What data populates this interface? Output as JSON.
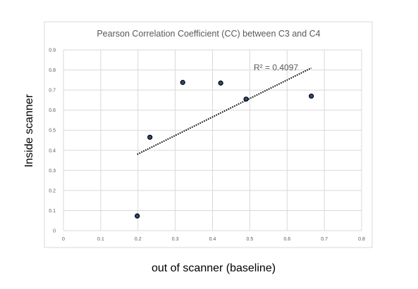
{
  "chart_data": {
    "type": "scatter",
    "title": "Pearson Correlation Coefficient (CC) between C3 and C4",
    "xlabel": "out of scanner (baseline)",
    "ylabel": "Inside  scanner",
    "xlim": [
      0,
      0.8
    ],
    "ylim": [
      0,
      0.9
    ],
    "x_ticks": [
      "0",
      "0.1",
      "0.2",
      "0.3",
      "0.4",
      "0.5",
      "0.6",
      "0.7",
      "0.8"
    ],
    "y_ticks": [
      "0",
      "0.1",
      "0.2",
      "0.3",
      "0.4",
      "0.5",
      "0.6",
      "0.7",
      "0.8",
      "0.9"
    ],
    "grid": true,
    "legend": "none",
    "series": [
      {
        "points": [
          {
            "x": 0.198,
            "y": 0.073
          },
          {
            "x": 0.232,
            "y": 0.465
          },
          {
            "x": 0.32,
            "y": 0.738
          },
          {
            "x": 0.422,
            "y": 0.735
          },
          {
            "x": 0.49,
            "y": 0.655
          },
          {
            "x": 0.665,
            "y": 0.67
          }
        ],
        "marker_color": "#2e4a7d",
        "marker_edge": "#000000"
      }
    ],
    "trendline": {
      "type": "linear",
      "x_range": [
        0.198,
        0.665
      ],
      "y_range": [
        0.38,
        0.81
      ],
      "label": "R² = 0.4097",
      "color": "#000000"
    },
    "colors": {
      "grid": "#d9d9d9",
      "plot_border": "#d9d9d9",
      "text": "#595959"
    }
  }
}
